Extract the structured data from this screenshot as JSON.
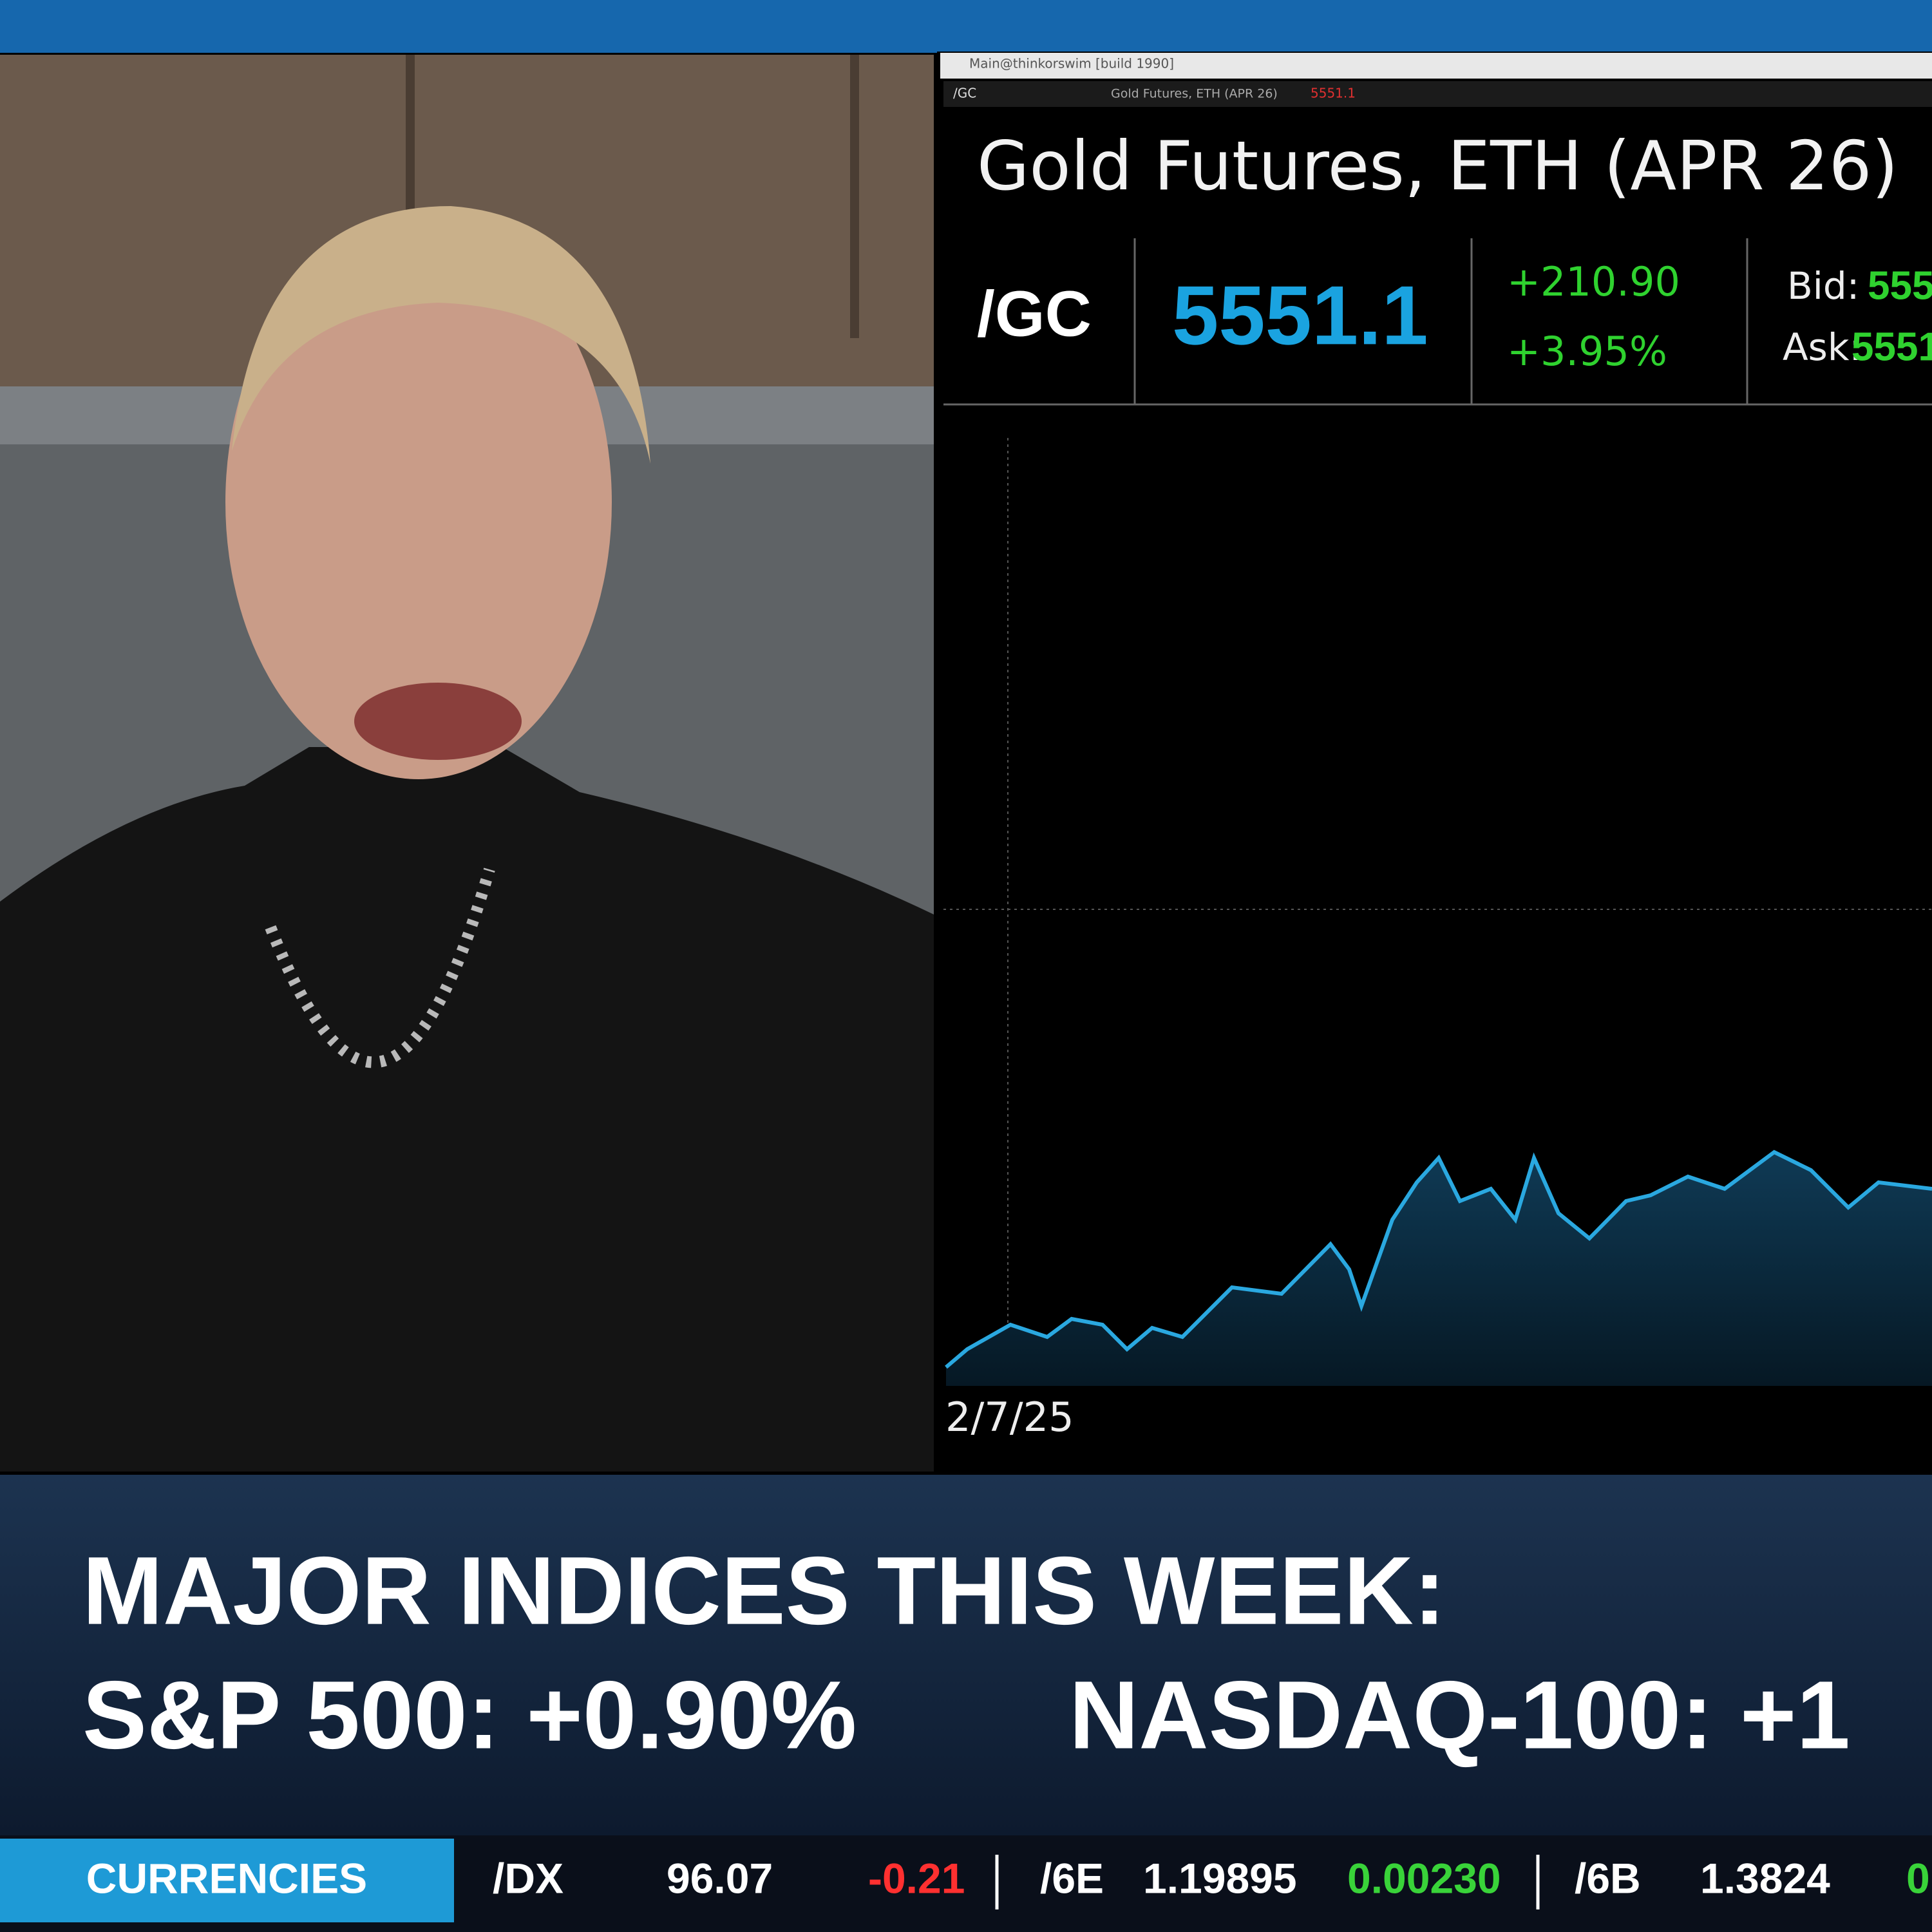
{
  "window": {
    "title": "Main@thinkorswim [build 1990]",
    "toolbar_symbol": "/GC",
    "toolbar_name": "Gold Futures, ETH (APR 26)",
    "toolbar_last": "5551.1"
  },
  "quote": {
    "title": "Gold Futures, ETH (APR 26)",
    "symbol": "/GC",
    "last": "5551.1",
    "change": "+210.90",
    "change_percent": "+3.95%",
    "bid_label": "Bid:",
    "bid": "555",
    "ask_label": "Ask:",
    "ask": "5551"
  },
  "chart": {
    "start_date": "2/7/25"
  },
  "lower_third": {
    "headline": "MAJOR INDICES THIS WEEK:",
    "items": [
      "S&P 500: +0.90%",
      "NASDAQ-100: +1"
    ]
  },
  "ticker": {
    "section": "CURRENCIES",
    "rows": [
      [
        "/DX",
        "96.07",
        "-0.21"
      ],
      [
        "/6E",
        "1.19895",
        "0.00230"
      ],
      [
        "/6B",
        "1.3824",
        "0"
      ]
    ]
  }
}
